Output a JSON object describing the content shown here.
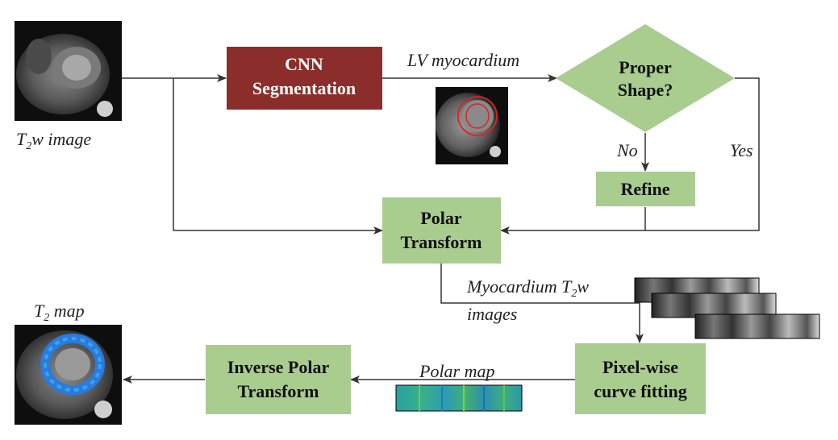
{
  "colors": {
    "cnn_box": "#8b2e2b",
    "green_box": "#a9cc8f",
    "arrow": "#333333",
    "box_text_dark": "#111111",
    "box_text_light": "#ffffff"
  },
  "nodes": {
    "cnn": [
      "CNN",
      "Segmentation"
    ],
    "proper_shape": [
      "Proper",
      "Shape?"
    ],
    "refine": [
      "Refine"
    ],
    "polar_transform": [
      "Polar",
      "Transform"
    ],
    "pixel_fitting": [
      "Pixel-wise",
      "curve fitting"
    ],
    "inverse_polar": [
      "Inverse Polar",
      "Transform"
    ]
  },
  "labels": {
    "t2w_image": {
      "base": "T",
      "sub": "2",
      "rest": "w image"
    },
    "lv_myocardium": "LV myocardium",
    "no": "No",
    "yes": "Yes",
    "myocardium_t2w_line1": {
      "base": "Myocardium T",
      "sub": "2",
      "rest": "w"
    },
    "myocardium_t2w_line2": "images",
    "polar_map": "Polar map",
    "t2_map": {
      "base": "T",
      "sub": "2",
      "rest": " map"
    }
  },
  "images": {
    "t2w_image": "cardiac MRI T2w input image",
    "lv_segmentation": "MRI with red LV myocardium contour",
    "myocardium_strips": "three grayscale polar strips",
    "polar_map": "colored polar map strip",
    "t2_map": "cardiac MRI with blue T2 map overlay"
  }
}
